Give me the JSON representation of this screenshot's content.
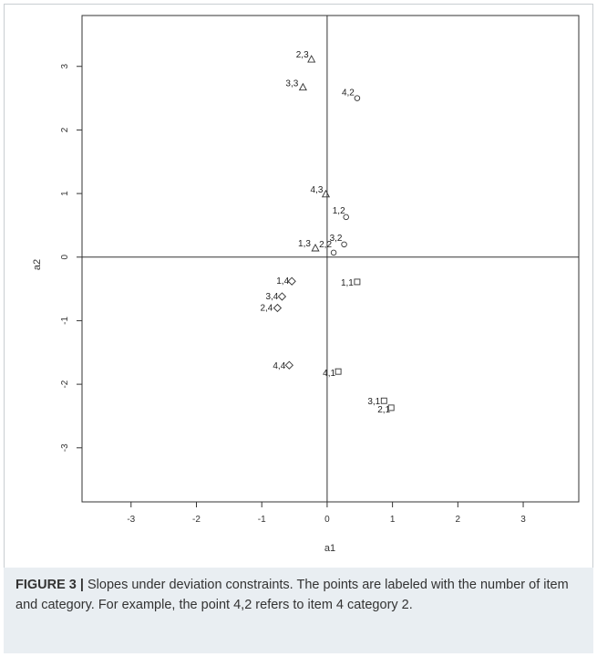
{
  "chart_data": {
    "type": "scatter",
    "xlabel": "a1",
    "ylabel": "a2",
    "xlim": [
      -3.75,
      3.85
    ],
    "ylim": [
      -3.85,
      3.8
    ],
    "xticks": [
      -3,
      -2,
      -1,
      0,
      1,
      2,
      3
    ],
    "yticks": [
      -3,
      -2,
      -1,
      0,
      1,
      2,
      3
    ],
    "reference_lines": {
      "x": 0,
      "y": 0
    },
    "grid": false,
    "markers": {
      "1": "square",
      "2": "circle",
      "3": "triangle",
      "4": "diamond"
    },
    "points": [
      {
        "label": "1,1",
        "item": 1,
        "category": 1,
        "x": 0.46,
        "y": -0.39
      },
      {
        "label": "2,1",
        "item": 2,
        "category": 1,
        "x": 0.98,
        "y": -2.37
      },
      {
        "label": "3,1",
        "item": 3,
        "category": 1,
        "x": 0.87,
        "y": -2.26
      },
      {
        "label": "4,1",
        "item": 4,
        "category": 1,
        "x": 0.17,
        "y": -1.8
      },
      {
        "label": "1,2",
        "item": 1,
        "category": 2,
        "x": 0.29,
        "y": 0.63
      },
      {
        "label": "2,2",
        "item": 2,
        "category": 2,
        "x": 0.1,
        "y": 0.07
      },
      {
        "label": "3,2",
        "item": 3,
        "category": 2,
        "x": 0.26,
        "y": 0.2
      },
      {
        "label": "4,2",
        "item": 4,
        "category": 2,
        "x": 0.46,
        "y": 2.5
      },
      {
        "label": "1,3",
        "item": 1,
        "category": 3,
        "x": -0.18,
        "y": 0.14
      },
      {
        "label": "2,3",
        "item": 2,
        "category": 3,
        "x": -0.24,
        "y": 3.11
      },
      {
        "label": "3,3",
        "item": 3,
        "category": 3,
        "x": -0.37,
        "y": 2.67
      },
      {
        "label": "4,3",
        "item": 4,
        "category": 3,
        "x": -0.02,
        "y": 0.99
      },
      {
        "label": "1,4",
        "item": 1,
        "category": 4,
        "x": -0.54,
        "y": -0.38
      },
      {
        "label": "2,4",
        "item": 2,
        "category": 4,
        "x": -0.76,
        "y": -0.8
      },
      {
        "label": "3,4",
        "item": 3,
        "category": 4,
        "x": -0.69,
        "y": -0.62
      },
      {
        "label": "4,4",
        "item": 4,
        "category": 4,
        "x": -0.58,
        "y": -1.7
      }
    ]
  },
  "caption": {
    "figure_number": "FIGURE 3 |",
    "text": " Slopes under deviation constraints. The points are labeled with the number of item and category. For example, the point 4,2 refers to item 4 category 2."
  }
}
